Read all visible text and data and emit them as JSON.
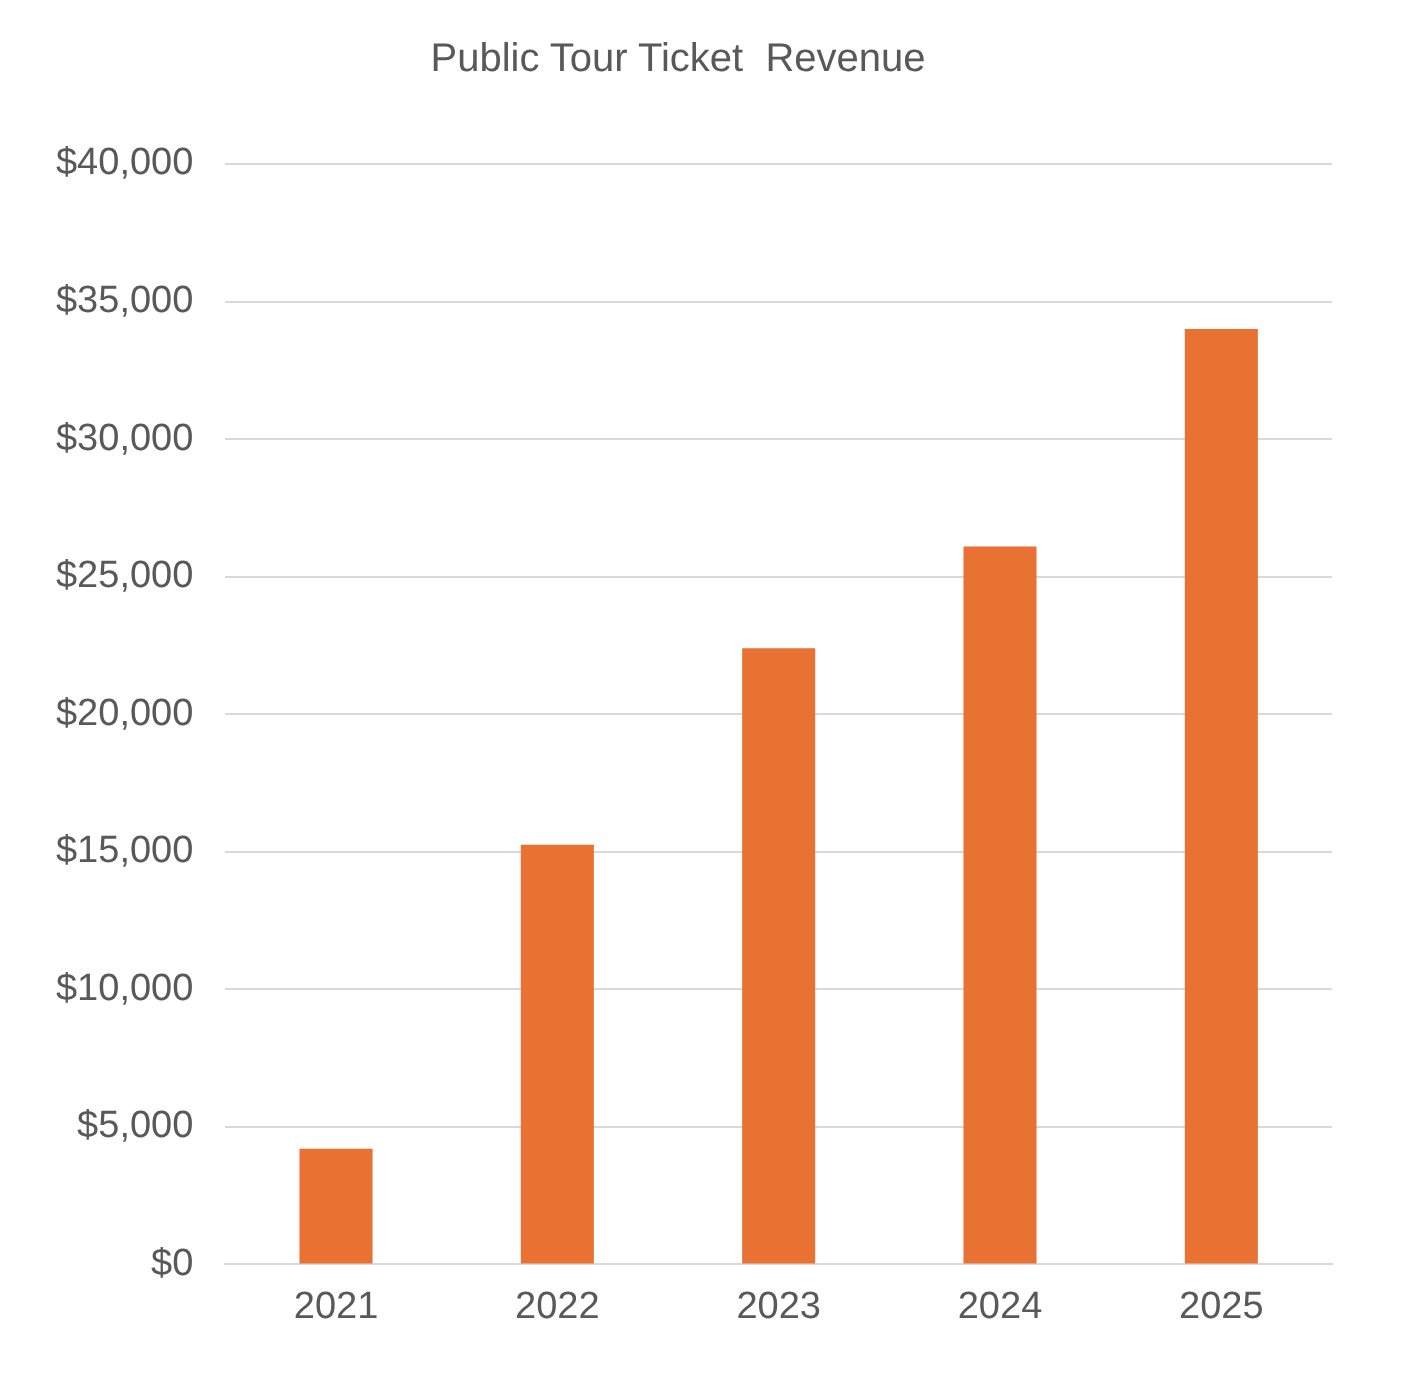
{
  "chart_data": {
    "type": "bar",
    "title": "Public Tour Ticket  Revenue",
    "categories": [
      "2021",
      "2022",
      "2023",
      "2024",
      "2025"
    ],
    "values": [
      4200,
      15250,
      22400,
      26100,
      34000
    ],
    "color": "#e97132",
    "ylim": [
      0,
      40000
    ],
    "yticks": [
      {
        "value": 0,
        "label": "$0"
      },
      {
        "value": 5000,
        "label": "$5,000"
      },
      {
        "value": 10000,
        "label": "$10,000"
      },
      {
        "value": 15000,
        "label": "$15,000"
      },
      {
        "value": 20000,
        "label": "$20,000"
      },
      {
        "value": 25000,
        "label": "$25,000"
      },
      {
        "value": 30000,
        "label": "$30,000"
      },
      {
        "value": 35000,
        "label": "$35,000"
      },
      {
        "value": 40000,
        "label": "$40,000"
      }
    ],
    "grid": "y",
    "legend": false
  }
}
